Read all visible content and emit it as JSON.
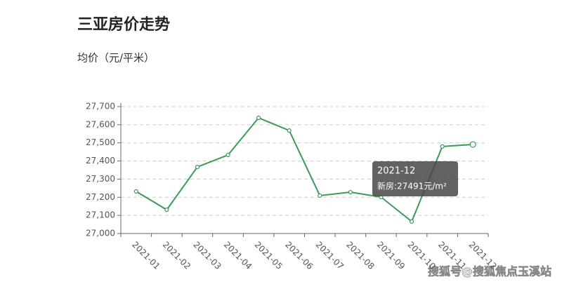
{
  "chart_data": {
    "type": "line",
    "title": "三亚房价走势",
    "subtitle": "均价（元/平米）",
    "categories": [
      "2021-01",
      "2021-02",
      "2021-03",
      "2021-04",
      "2021-05",
      "2021-06",
      "2021-07",
      "2021-08",
      "2021-09",
      "2021-10",
      "2021-11",
      "2021-12"
    ],
    "values": [
      27232,
      27131,
      27367,
      27433,
      27638,
      27568,
      27209,
      27228,
      27201,
      27066,
      27480,
      27491
    ],
    "color": "#3a9a57",
    "ylim": [
      27000,
      27700
    ],
    "yticks": [
      {
        "value": 27000,
        "label": "27,000"
      },
      {
        "value": 27100,
        "label": "27,100"
      },
      {
        "value": 27200,
        "label": "27,200"
      },
      {
        "value": 27300,
        "label": "27,300"
      },
      {
        "value": 27400,
        "label": "27,400"
      },
      {
        "value": 27500,
        "label": "27,500"
      },
      {
        "value": 27600,
        "label": "27,600"
      },
      {
        "value": 27700,
        "label": "27,700"
      }
    ],
    "grid": true,
    "tooltip": {
      "title": "2021-12",
      "text": "新房:27491元/m²"
    },
    "watermark": "搜狐号@搜狐焦点玉溪站"
  }
}
